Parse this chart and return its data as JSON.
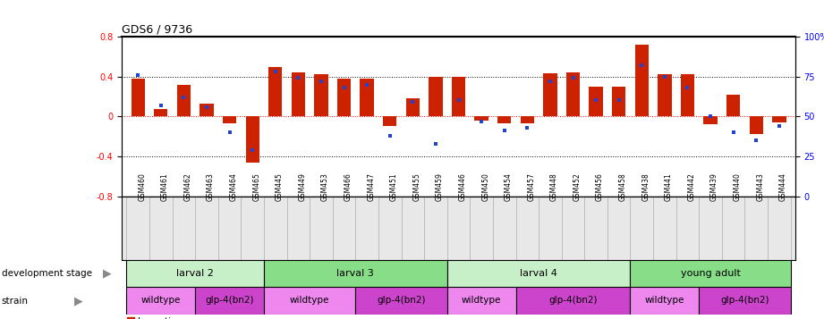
{
  "title": "GDS6 / 9736",
  "samples": [
    "GSM460",
    "GSM461",
    "GSM462",
    "GSM463",
    "GSM464",
    "GSM465",
    "GSM445",
    "GSM449",
    "GSM453",
    "GSM466",
    "GSM447",
    "GSM451",
    "GSM455",
    "GSM459",
    "GSM446",
    "GSM450",
    "GSM454",
    "GSM457",
    "GSM448",
    "GSM452",
    "GSM456",
    "GSM458",
    "GSM438",
    "GSM441",
    "GSM442",
    "GSM439",
    "GSM440",
    "GSM443",
    "GSM444"
  ],
  "log_ratio": [
    0.38,
    0.07,
    0.32,
    0.13,
    -0.07,
    -0.46,
    0.5,
    0.44,
    0.42,
    0.38,
    0.38,
    -0.1,
    0.18,
    0.4,
    0.4,
    -0.04,
    -0.07,
    -0.07,
    0.43,
    0.44,
    0.3,
    0.3,
    0.72,
    0.42,
    0.42,
    -0.08,
    0.22,
    -0.18,
    -0.06
  ],
  "percentile": [
    76,
    57,
    62,
    56,
    40,
    29,
    78,
    74,
    72,
    68,
    70,
    38,
    59,
    33,
    60,
    47,
    41,
    43,
    72,
    74,
    60,
    60,
    82,
    75,
    68,
    50,
    40,
    35,
    44
  ],
  "dev_stage_groups": [
    {
      "label": "larval 2",
      "start": 0,
      "end": 6,
      "color": "#c8f0c8"
    },
    {
      "label": "larval 3",
      "start": 6,
      "end": 14,
      "color": "#88dd88"
    },
    {
      "label": "larval 4",
      "start": 14,
      "end": 22,
      "color": "#c8f0c8"
    },
    {
      "label": "young adult",
      "start": 22,
      "end": 29,
      "color": "#88dd88"
    }
  ],
  "strain_groups": [
    {
      "label": "wildtype",
      "start": 0,
      "end": 3,
      "color": "#ee88ee"
    },
    {
      "label": "glp-4(bn2)",
      "start": 3,
      "end": 6,
      "color": "#cc44cc"
    },
    {
      "label": "wildtype",
      "start": 6,
      "end": 10,
      "color": "#ee88ee"
    },
    {
      "label": "glp-4(bn2)",
      "start": 10,
      "end": 14,
      "color": "#cc44cc"
    },
    {
      "label": "wildtype",
      "start": 14,
      "end": 17,
      "color": "#ee88ee"
    },
    {
      "label": "glp-4(bn2)",
      "start": 17,
      "end": 22,
      "color": "#cc44cc"
    },
    {
      "label": "wildtype",
      "start": 22,
      "end": 25,
      "color": "#ee88ee"
    },
    {
      "label": "glp-4(bn2)",
      "start": 25,
      "end": 29,
      "color": "#cc44cc"
    }
  ],
  "bar_color": "#cc2200",
  "dot_color": "#2244cc",
  "ylim_left": [
    -0.8,
    0.8
  ],
  "ylim_right": [
    0,
    100
  ],
  "yticks_left": [
    -0.8,
    -0.4,
    0.0,
    0.4,
    0.8
  ],
  "ytick_labels_left": [
    "-0.8",
    "-0.4",
    "0",
    "0.4",
    "0.8"
  ],
  "yticks_right": [
    0,
    25,
    50,
    75,
    100
  ],
  "ytick_labels_right": [
    "0",
    "25",
    "50",
    "75",
    "100%"
  ]
}
